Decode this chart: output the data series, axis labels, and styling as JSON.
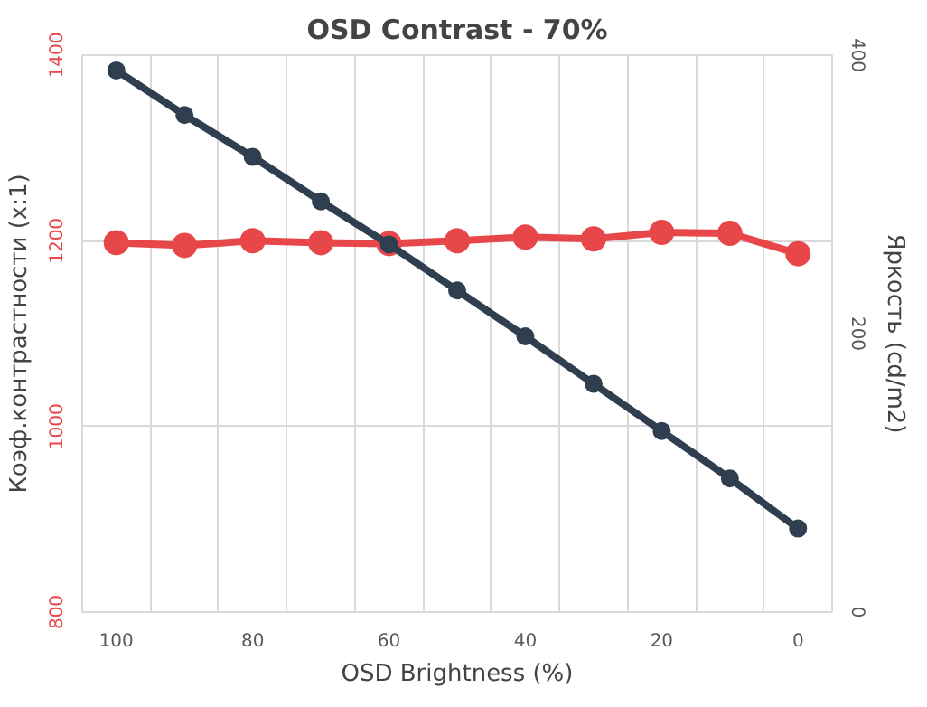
{
  "chart_data": {
    "type": "line",
    "title": "OSD Contrast - 70%",
    "xlabel": "OSD Brightness (%)",
    "ylabel": "Коэф.контрастности (x:1)",
    "y2label": "Яркость (cd/m2)",
    "categories": [
      "100",
      null,
      "80",
      null,
      "60",
      null,
      "40",
      null,
      "20",
      null,
      "0"
    ],
    "series": [
      {
        "color": "#e8474a",
        "values": [
          1198,
          1195,
          1200,
          1198,
          1197,
          1200,
          1204,
          1202,
          1209,
          1208,
          1186
        ]
      },
      {
        "color": "#2f3f4f",
        "axis": "y2",
        "values": [
          389,
          357,
          327,
          295,
          264,
          231,
          198,
          164,
          130,
          96,
          60
        ]
      }
    ],
    "ylim": [
      800,
      1400
    ],
    "yticks": [
      800,
      1000,
      1200,
      1400
    ],
    "y2lim": [
      0,
      400
    ],
    "y2ticks": [
      0,
      200,
      400
    ],
    "grid": true,
    "marker": "circle",
    "line_style": "solid"
  }
}
